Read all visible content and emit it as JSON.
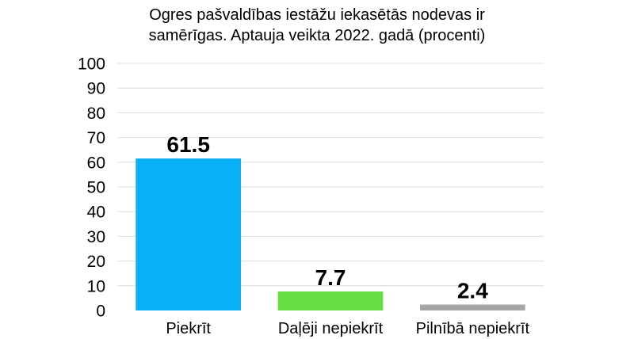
{
  "chart_data": {
    "type": "bar",
    "title_lines": [
      "Ogres pašvaldības iestāžu iekasētās nodevas ir",
      "samērīgas. Aptauja veikta 2022. gadā (procenti)"
    ],
    "categories": [
      "Piekrīt",
      "Daļēji nepiekrīt",
      "Pilnībā nepiekrīt"
    ],
    "values": [
      61.5,
      7.7,
      2.4
    ],
    "value_labels": [
      "61.5",
      "7.7",
      "2.4"
    ],
    "colors": [
      "#0ab0f5",
      "#66dd44",
      "#a6a6a6"
    ],
    "ylim": [
      0,
      100
    ],
    "yticks": [
      0,
      10,
      20,
      30,
      40,
      50,
      60,
      70,
      80,
      90,
      100
    ],
    "grid": true,
    "xlabel": "",
    "ylabel": ""
  }
}
